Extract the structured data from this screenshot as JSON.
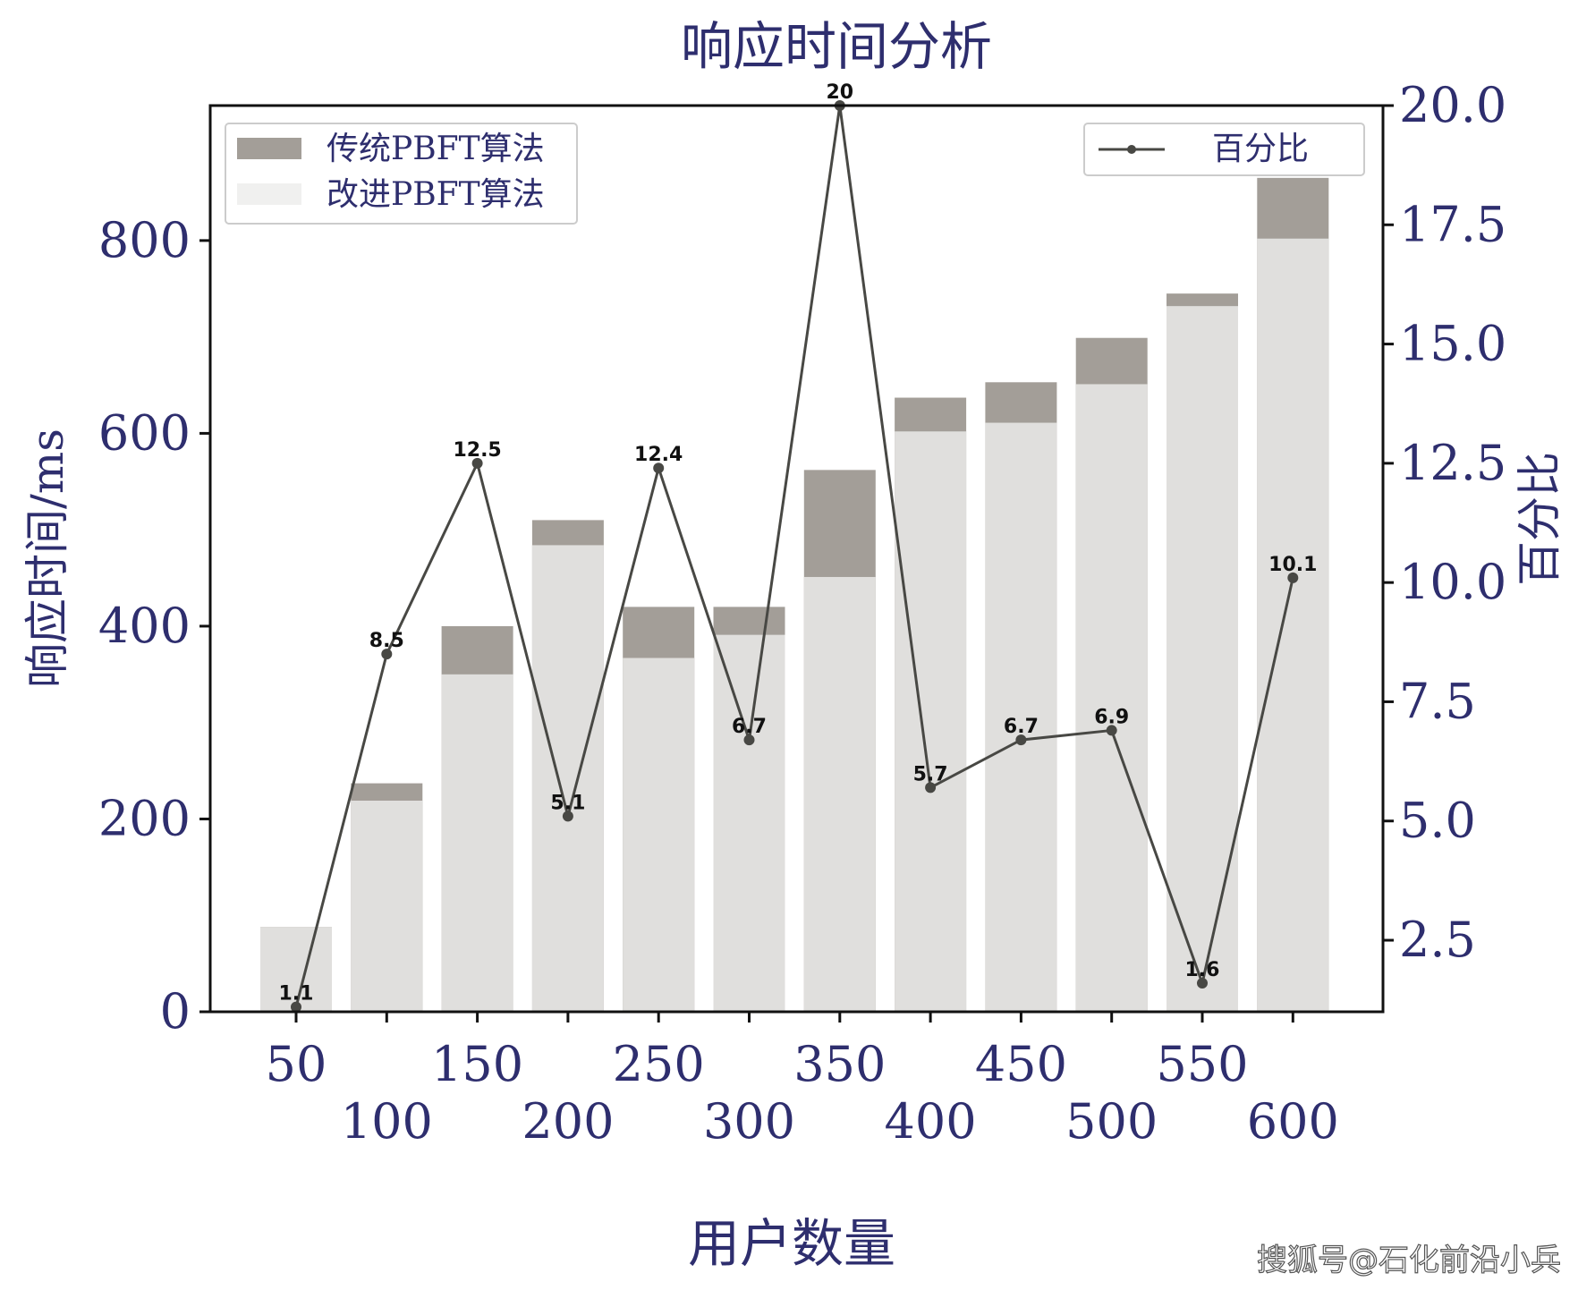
{
  "chart_data": {
    "type": "bar",
    "title": "响应时间分析",
    "xlabel": "用户数量",
    "ylabel": "响应时间/ms",
    "y2label": "百分比",
    "categories": [
      "50",
      "100",
      "150",
      "200",
      "250",
      "300",
      "350",
      "400",
      "450",
      "500",
      "550",
      "600"
    ],
    "series": [
      {
        "name": "传统PBFT算法",
        "kind": "bar",
        "color": "#a39e98",
        "values": [
          88,
          237,
          400,
          510,
          420,
          420,
          562,
          637,
          653,
          699,
          745,
          865
        ]
      },
      {
        "name": "改进PBFT算法",
        "kind": "bar",
        "color": "#e0dfdd",
        "values": [
          88,
          219,
          350,
          484,
          367,
          391,
          451,
          602,
          611,
          651,
          732,
          802
        ]
      },
      {
        "name": "百分比",
        "kind": "line",
        "axis": "right",
        "color": "#484844",
        "values": [
          1.1,
          8.5,
          12.5,
          5.1,
          12.4,
          6.7,
          20,
          5.7,
          6.7,
          6.9,
          1.6,
          10.1
        ]
      }
    ],
    "point_labels": [
      "1.1",
      "8.5",
      "12.5",
      "5.1",
      "12.4",
      "6.7",
      "20",
      "5.7",
      "6.7",
      "6.9",
      "1.6",
      "10.1"
    ],
    "ylim": [
      0,
      940
    ],
    "y2lim": [
      1,
      20
    ],
    "yticks": [
      "0",
      "200",
      "400",
      "600",
      "800"
    ],
    "y2ticks": [
      "2.5",
      "5.0",
      "7.5",
      "10.0",
      "12.5",
      "15.0",
      "17.5",
      "20.0"
    ],
    "legend_left_position": "top-left",
    "legend_right_position": "top-right",
    "grid": false,
    "text_color": "#2e2e6e",
    "watermark": "搜狐号@石化前沿小兵"
  }
}
